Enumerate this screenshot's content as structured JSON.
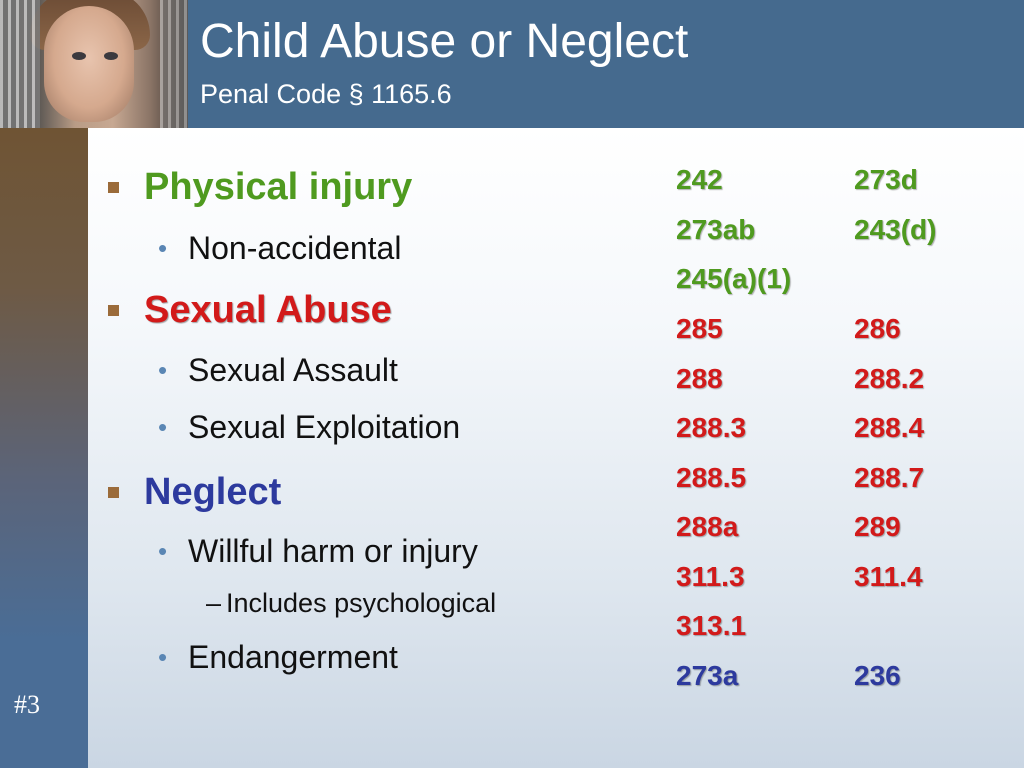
{
  "header": {
    "title": "Child Abuse or Neglect",
    "subtitle": "Penal Code § 1165.6"
  },
  "slide_number": "#3",
  "colors": {
    "header_bg": "#456a8e",
    "physical": "#4f9a1f",
    "sexual": "#d21a1a",
    "neglect": "#2d3a9e",
    "bullet_square": "#9b6b3a"
  },
  "bullets": {
    "physical": {
      "label": "Physical injury",
      "sub": [
        "Non-accidental"
      ]
    },
    "sexual": {
      "label": "Sexual Abuse",
      "sub": [
        "Sexual Assault",
        "Sexual Exploitation"
      ]
    },
    "neglect": {
      "label": "Neglect",
      "sub": [
        "Willful harm or injury",
        "Endangerment"
      ],
      "subsub": "Includes psychological",
      "subsub_dash": "–"
    },
    "sub_bullet_glyph": "•"
  },
  "codes": {
    "green": [
      [
        "242",
        "273d"
      ],
      [
        "273ab",
        "243(d)"
      ],
      [
        "245(a)(1)",
        ""
      ]
    ],
    "red": [
      [
        "285",
        "286"
      ],
      [
        "288",
        "288.2"
      ],
      [
        "288.3",
        "288.4"
      ],
      [
        "288.5",
        "288.7"
      ],
      [
        "288a",
        "289"
      ],
      [
        "311.3",
        "311.4"
      ],
      [
        "313.1",
        ""
      ]
    ],
    "blue": [
      [
        "273a",
        "236"
      ]
    ]
  }
}
